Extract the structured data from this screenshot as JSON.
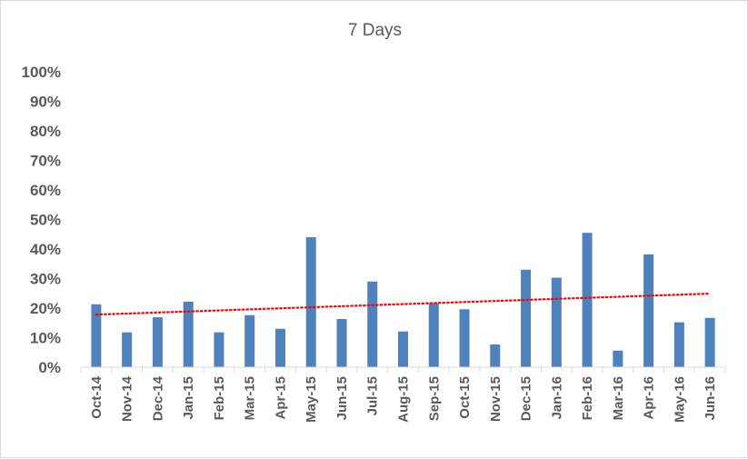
{
  "chart_data": {
    "type": "bar",
    "title": "7 Days",
    "xlabel": "",
    "ylabel": "",
    "ylim": [
      0,
      100
    ],
    "y_tick_labels": [
      "0%",
      "10%",
      "20%",
      "30%",
      "40%",
      "50%",
      "60%",
      "70%",
      "80%",
      "90%",
      "100%"
    ],
    "categories": [
      "Oct-14",
      "Nov-14",
      "Dec-14",
      "Jan-15",
      "Feb-15",
      "Mar-15",
      "Apr-15",
      "May-15",
      "Jun-15",
      "Jul-15",
      "Aug-15",
      "Sep-15",
      "Oct-15",
      "Nov-15",
      "Dec-15",
      "Jan-16",
      "Feb-16",
      "Mar-16",
      "Apr-16",
      "May-16",
      "Jun-16"
    ],
    "values": [
      21.3,
      11.8,
      16.9,
      22.2,
      11.8,
      17.6,
      13.0,
      44.0,
      16.3,
      29.0,
      12.1,
      21.6,
      19.6,
      7.7,
      33.0,
      30.3,
      45.5,
      5.6,
      38.2,
      15.2,
      16.7
    ],
    "trendline": {
      "type": "linear",
      "start": 17.8,
      "end": 24.9,
      "color": "#ff0000",
      "style": "dotted"
    },
    "bar_color": "#4f81bd",
    "grid": false,
    "legend": "none"
  }
}
